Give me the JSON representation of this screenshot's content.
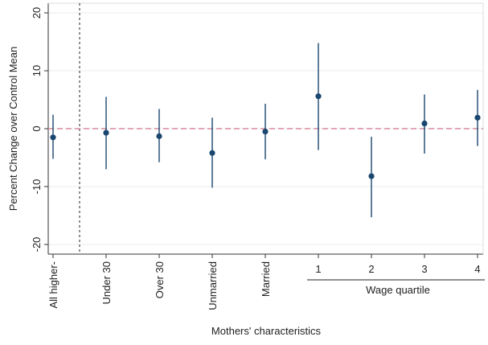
{
  "chart_data": {
    "type": "scatter",
    "subtype": "coefficient plot with 95% confidence intervals",
    "xlabel": "Mothers' characteristics",
    "ylabel": "Percent Change over Control Mean",
    "ylim": [
      -21,
      21
    ],
    "yticks": [
      -20,
      -10,
      0,
      10,
      20
    ],
    "categories": [
      "All higher-",
      "Under 30",
      "Over 30",
      "Unmarried",
      "Married",
      "1",
      "2",
      "3",
      "4"
    ],
    "rotated_categories": [
      "All higher-",
      "Under 30",
      "Over 30",
      "Unmarried",
      "Married"
    ],
    "estimates": [
      -1.5,
      -0.7,
      -1.3,
      -4.2,
      -0.5,
      5.6,
      -8.2,
      0.9,
      1.9
    ],
    "ci_low": [
      -5.2,
      -7.0,
      -5.8,
      -10.2,
      -5.3,
      -3.7,
      -15.3,
      -4.3,
      -3.0
    ],
    "ci_high": [
      2.4,
      5.5,
      3.4,
      1.9,
      4.3,
      14.8,
      -1.4,
      5.9,
      6.7
    ],
    "group_label": "Wage quartile",
    "group_start_category": "1",
    "group_end_category": "4",
    "reference_line": 0,
    "separator_after_category": "All higher-",
    "grid": true,
    "colors": {
      "marker": "#1a476f",
      "reference_line": "#d98a9c",
      "separator": "#555555",
      "grid": "#e8ecef",
      "axis": "#333333"
    }
  }
}
